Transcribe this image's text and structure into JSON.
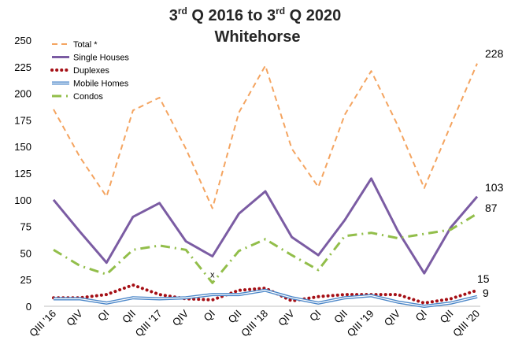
{
  "chart_data": {
    "type": "line",
    "title": {
      "line1_a": "3",
      "line1_sup_a": "rd",
      "line1_b": " Q 2016 to 3",
      "line1_sup_b": "rd",
      "line1_c": " Q 2020",
      "line2": "Whitehorse"
    },
    "ylim": [
      0,
      250
    ],
    "yticks": [
      0,
      25,
      50,
      75,
      100,
      125,
      150,
      175,
      200,
      225,
      250
    ],
    "grid": false,
    "legend_position": "top-left",
    "categories": [
      "QIII '16",
      "QIV",
      "QI",
      "QII",
      "QIII '17",
      "QIV",
      "QI",
      "QII",
      "QIII '18",
      "QIV",
      "QI",
      "QII",
      "QIII '19",
      "QIV",
      "QI",
      "QII",
      "QIII '20"
    ],
    "series": [
      {
        "name": "Total *",
        "color": "#F4A460",
        "style": "dashed",
        "values": [
          185,
          140,
          103,
          184,
          196,
          148,
          92,
          182,
          226,
          148,
          112,
          180,
          221,
          170,
          111,
          170,
          228
        ]
      },
      {
        "name": "Single Houses",
        "color": "#7B5CA3",
        "style": "solid",
        "values": [
          100,
          70,
          41,
          84,
          97,
          61,
          47,
          87,
          108,
          65,
          48,
          81,
          120,
          71,
          31,
          74,
          103
        ]
      },
      {
        "name": "Duplexes",
        "color": "#A50F15",
        "style": "dotted",
        "values": [
          8,
          8,
          11,
          20,
          11,
          7,
          6,
          15,
          17,
          5,
          9,
          11,
          11,
          11,
          3,
          7,
          15
        ]
      },
      {
        "name": "Mobile Homes",
        "color": "#4A86C8",
        "style": "double",
        "values": [
          7,
          7,
          3,
          8,
          7,
          8,
          11,
          11,
          15,
          8,
          3,
          8,
          10,
          4,
          0,
          3,
          9
        ]
      },
      {
        "name": "Condos",
        "color": "#92BE4A",
        "style": "dashdot",
        "values": [
          53,
          38,
          30,
          53,
          57,
          53,
          22,
          52,
          63,
          48,
          34,
          66,
          69,
          64,
          68,
          72,
          87
        ]
      }
    ],
    "marker": {
      "label": "x",
      "index": 6
    },
    "end_labels": [
      "228",
      "103",
      "87",
      "15",
      "9"
    ]
  }
}
